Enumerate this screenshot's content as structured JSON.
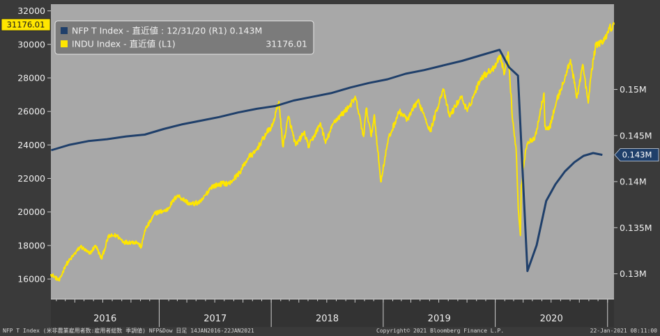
{
  "chart_data": {
    "type": "line",
    "left_axis": {
      "range": [
        14800,
        32400
      ],
      "ticks": [
        16000,
        18000,
        20000,
        22000,
        24000,
        26000,
        28000,
        30000,
        32000
      ]
    },
    "right_axis": {
      "range": [
        0.12725,
        0.15925
      ],
      "ticks": [
        "0.13M",
        "0.135M",
        "0.14M",
        "0.145M",
        "0.15M"
      ],
      "tick_values": [
        0.13,
        0.135,
        0.14,
        0.145,
        0.15
      ]
    },
    "x_axis": {
      "years": [
        "2016",
        "2017",
        "2018",
        "2019",
        "2020"
      ],
      "start": "2016-01-14",
      "end": "2021-01-22"
    },
    "legend": [
      {
        "label": "NFP T Index - 直近値 : 12/31/20 (R1) 0.143M",
        "color": "#1f3f6a"
      },
      {
        "label": "INDU Index - 直近値 (L1)",
        "value": "31176.01",
        "color": "#ffe600"
      }
    ],
    "series": [
      {
        "name": "NFP T Index",
        "axis": "right",
        "color": "#1f3f6a",
        "x": [
          "2016-01",
          "2016-03",
          "2016-05",
          "2016-07",
          "2016-09",
          "2016-11",
          "2017-01",
          "2017-03",
          "2017-05",
          "2017-07",
          "2017-09",
          "2017-11",
          "2018-01",
          "2018-03",
          "2018-05",
          "2018-07",
          "2018-09",
          "2018-11",
          "2019-01",
          "2019-03",
          "2019-05",
          "2019-07",
          "2019-09",
          "2019-11",
          "2020-01",
          "2020-02",
          "2020-03",
          "2020-04",
          "2020-05",
          "2020-06",
          "2020-07",
          "2020-08",
          "2020-09",
          "2020-10",
          "2020-11",
          "2020-12"
        ],
        "values": [
          0.1434,
          0.144,
          0.1444,
          0.1446,
          0.1449,
          0.1451,
          0.1457,
          0.1462,
          0.1466,
          0.147,
          0.1475,
          0.1479,
          0.1482,
          0.1488,
          0.1492,
          0.1496,
          0.1502,
          0.1507,
          0.1511,
          0.1517,
          0.1521,
          0.1526,
          0.1531,
          0.1537,
          0.1543,
          0.1524,
          0.1515,
          0.1303,
          0.1331,
          0.1379,
          0.1397,
          0.1411,
          0.1421,
          0.1428,
          0.1431,
          0.1429
        ]
      },
      {
        "name": "INDU Index",
        "axis": "left",
        "color": "#ffe600",
        "x": [
          "2016-01-14",
          "2016-02-11",
          "2016-03-01",
          "2016-04-20",
          "2016-05-19",
          "2016-06-08",
          "2016-06-27",
          "2016-07-20",
          "2016-08-15",
          "2016-09-09",
          "2016-10-20",
          "2016-11-04",
          "2016-11-15",
          "2016-12-20",
          "2017-01-25",
          "2017-03-01",
          "2017-04-13",
          "2017-05-17",
          "2017-06-19",
          "2017-07-26",
          "2017-08-18",
          "2017-09-20",
          "2017-10-20",
          "2017-11-07",
          "2017-12-18",
          "2018-01-04",
          "2018-01-26",
          "2018-02-08",
          "2018-02-26",
          "2018-03-22",
          "2018-04-18",
          "2018-05-03",
          "2018-06-11",
          "2018-06-27",
          "2018-07-25",
          "2018-08-29",
          "2018-10-03",
          "2018-10-29",
          "2018-11-07",
          "2018-11-23",
          "2018-12-03",
          "2018-12-24",
          "2019-01-17",
          "2019-02-22",
          "2019-03-22",
          "2019-04-23",
          "2019-05-13",
          "2019-06-03",
          "2019-07-15",
          "2019-08-05",
          "2019-09-12",
          "2019-10-02",
          "2019-11-15",
          "2019-12-27",
          "2020-01-17",
          "2020-01-31",
          "2020-02-12",
          "2020-02-27",
          "2020-03-09",
          "2020-03-16",
          "2020-03-23",
          "2020-03-26",
          "2020-04-09",
          "2020-04-17",
          "2020-05-08",
          "2020-06-08",
          "2020-06-11",
          "2020-06-26",
          "2020-07-20",
          "2020-08-14",
          "2020-09-02",
          "2020-09-23",
          "2020-10-12",
          "2020-10-30",
          "2020-11-09",
          "2020-11-24",
          "2020-12-09",
          "2020-12-21",
          "2021-01-08",
          "2021-01-14",
          "2021-01-22"
        ],
        "values": [
          16300,
          15900,
          16800,
          17950,
          17500,
          18000,
          17200,
          18550,
          18600,
          18200,
          18200,
          17900,
          18900,
          19950,
          20100,
          21000,
          20450,
          20600,
          21500,
          21700,
          21700,
          22350,
          23300,
          23500,
          24750,
          25100,
          26600,
          23900,
          25700,
          23960,
          24750,
          23900,
          25300,
          24100,
          25400,
          26000,
          26800,
          24500,
          26200,
          24500,
          25800,
          21800,
          24300,
          26000,
          25500,
          26650,
          25900,
          24800,
          27350,
          25700,
          26900,
          26000,
          28000,
          28600,
          29350,
          28250,
          29550,
          25400,
          23800,
          20200,
          18600,
          21600,
          23700,
          24200,
          24300,
          27100,
          25100,
          25000,
          26700,
          27900,
          29100,
          26800,
          28800,
          26500,
          28300,
          30000,
          30100,
          30200,
          31100,
          30900,
          31176.01
        ]
      }
    ]
  },
  "tags": {
    "left": "31176.01",
    "right": "0.143M"
  },
  "footer": {
    "left": "NFP T Index (米非農業雇用者数:雇用者総数 季調値) NFP&Dow  日足 14JAN2016-22JAN2021",
    "center": "Copyright© 2021 Bloomberg Finance L.P.",
    "right": "22-Jan-2021 08:11:00"
  }
}
